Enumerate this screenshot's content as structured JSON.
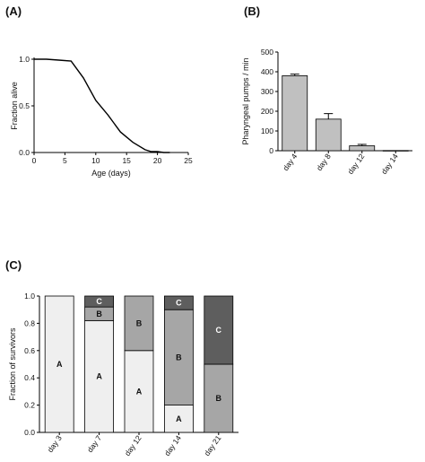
{
  "panels": {
    "a": "(A)",
    "b": "(B)",
    "c": "(C)"
  },
  "chart_data": [
    {
      "type": "line",
      "panel": "A",
      "xlabel": "Age (days)",
      "ylabel": "Fraction alive",
      "xlim": [
        0,
        25
      ],
      "ylim": [
        0,
        1.0
      ],
      "xticks": [
        "0",
        "5",
        "10",
        "15",
        "20",
        "25"
      ],
      "yticks": [
        "0.0",
        "0.5",
        "1.0"
      ],
      "x": [
        0,
        2,
        4,
        6,
        8,
        10,
        12,
        14,
        16,
        18,
        19,
        20,
        21,
        22
      ],
      "y": [
        1.0,
        1.0,
        0.99,
        0.98,
        0.8,
        0.56,
        0.4,
        0.22,
        0.11,
        0.03,
        0.01,
        0.01,
        0.0,
        0.0
      ],
      "grid": false,
      "color": "#000000"
    },
    {
      "type": "bar",
      "panel": "B",
      "ylabel": "Pharyngeal pumps / min",
      "ylim": [
        0,
        500
      ],
      "yticks": [
        "0",
        "100",
        "200",
        "300",
        "400",
        "500"
      ],
      "categories": [
        "day 4",
        "day 8",
        "day 12",
        "day 14"
      ],
      "values": [
        380,
        160,
        25,
        1
      ],
      "errors": [
        8,
        28,
        7,
        0
      ],
      "bar_color": "#c0c0c0",
      "grid": false
    },
    {
      "type": "bar",
      "stacked": true,
      "panel": "C",
      "ylabel": "Fraction of survivors",
      "ylim": [
        0,
        1.0
      ],
      "yticks": [
        "0.0",
        "0.2",
        "0.4",
        "0.6",
        "0.8",
        "1.0"
      ],
      "categories": [
        "day 3",
        "day 7",
        "day 12",
        "day 14",
        "day 21"
      ],
      "series": [
        {
          "name": "A",
          "color": "#efefef",
          "values": [
            1.0,
            0.82,
            0.6,
            0.2,
            0.0
          ]
        },
        {
          "name": "B",
          "color": "#a6a6a6",
          "values": [
            0.0,
            0.1,
            0.4,
            0.7,
            0.5
          ]
        },
        {
          "name": "C",
          "color": "#5e5e5e",
          "values": [
            0.0,
            0.08,
            0.0,
            0.1,
            0.5
          ]
        }
      ],
      "grid": false
    }
  ]
}
